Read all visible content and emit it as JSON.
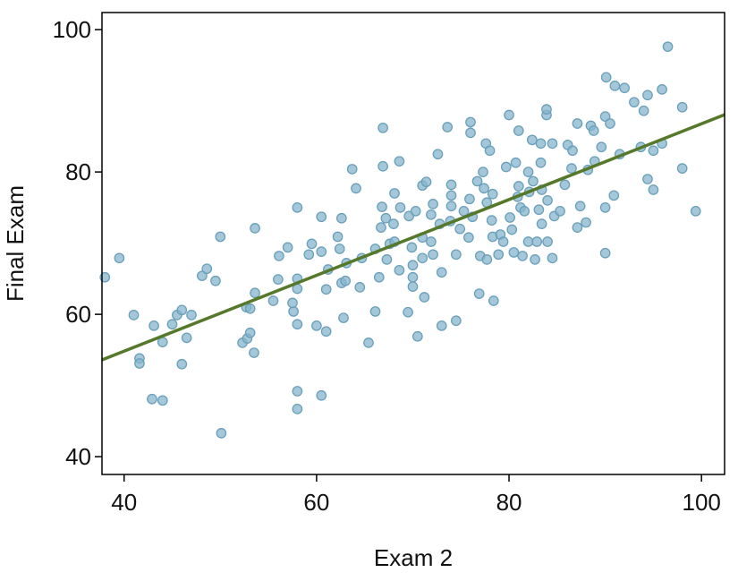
{
  "chart_data": {
    "type": "scatter",
    "x_label": "Exam 2",
    "y_label": "Final Exam",
    "xlim": [
      37.7,
      102.4
    ],
    "ylim": [
      37.5,
      102.4
    ],
    "xticks": [
      40,
      60,
      80,
      100
    ],
    "yticks": [
      40,
      60,
      80,
      100
    ],
    "color": "#86b6cc",
    "edge_color": "#6a9fba",
    "x": [
      38.0,
      39.5,
      41.0,
      41.6,
      41.6,
      42.9,
      43.1,
      44.0,
      44.0,
      45.0,
      45.5,
      46.0,
      47.0,
      46.5,
      46.0,
      48.1,
      48.6,
      49.5,
      50.0,
      50.1,
      52.3,
      52.8,
      53.1,
      52.7,
      53.1,
      53.6,
      53.6,
      53.5,
      55.5,
      56.0,
      56.1,
      57.0,
      57.6,
      57.5,
      58.0,
      58.0,
      58.0,
      58.0,
      58.0,
      58.0,
      59.2,
      59.5,
      60.0,
      60.5,
      60.5,
      60.5,
      61.0,
      61.2,
      61.0,
      62.2,
      62.4,
      62.6,
      62.6,
      62.8,
      63.1,
      63.0,
      63.7,
      64.1,
      64.5,
      64.7,
      65.4,
      66.1,
      66.1,
      66.5,
      66.7,
      66.9,
      66.8,
      66.9,
      67.2,
      67.3,
      67.6,
      68.1,
      68.0,
      68.6,
      68.6,
      68.7,
      68.1,
      69.5,
      69.6,
      69.9,
      70.0,
      70.0,
      70.0,
      70.3,
      70.5,
      71.0,
      71.0,
      71.0,
      71.2,
      71.4,
      71.9,
      71.9,
      72.1,
      72.1,
      72.6,
      72.8,
      73.0,
      73.0,
      73.6,
      73.9,
      74.0,
      74.0,
      74.0,
      74.5,
      74.5,
      74.9,
      75.3,
      75.8,
      75.9,
      76.0,
      76.0,
      76.2,
      76.7,
      76.9,
      77.0,
      77.3,
      77.4,
      77.6,
      77.7,
      77.7,
      78.0,
      78.2,
      78.3,
      78.3,
      78.4,
      78.9,
      79.1,
      79.4,
      79.7,
      80.0,
      80.1,
      80.3,
      80.5,
      80.7,
      80.9,
      81.0,
      81.0,
      81.2,
      81.4,
      81.6,
      82.0,
      82.0,
      82.1,
      82.4,
      82.5,
      82.7,
      82.9,
      83.1,
      83.3,
      83.3,
      83.4,
      83.4,
      83.9,
      83.9,
      84.0,
      84.0,
      84.5,
      84.5,
      84.7,
      85.3,
      85.8,
      86.1,
      86.5,
      86.6,
      87.1,
      87.1,
      87.4,
      88.0,
      88.2,
      88.5,
      88.8,
      88.9,
      89.6,
      90.0,
      90.0,
      90.0,
      90.1,
      90.5,
      90.9,
      91.0,
      91.5,
      92.0,
      93.0,
      93.7,
      94.0,
      94.4,
      94.4,
      95.0,
      95.0,
      95.9,
      95.9,
      96.5,
      98.0,
      98.0,
      99.4
    ],
    "y": [
      65.2,
      67.9,
      59.9,
      53.8,
      53.1,
      48.1,
      58.4,
      56.1,
      47.9,
      58.6,
      59.9,
      60.6,
      59.9,
      56.7,
      53.0,
      65.4,
      66.4,
      64.7,
      70.9,
      43.3,
      56.0,
      56.6,
      57.4,
      61.0,
      60.8,
      63.0,
      72.1,
      54.6,
      61.9,
      64.9,
      68.2,
      69.4,
      60.4,
      61.6,
      75.0,
      65.0,
      63.6,
      58.6,
      49.2,
      46.7,
      68.4,
      69.9,
      58.4,
      73.7,
      68.8,
      48.6,
      57.6,
      66.3,
      63.5,
      70.9,
      69.2,
      73.5,
      64.4,
      59.5,
      67.2,
      64.7,
      80.4,
      77.7,
      63.8,
      67.9,
      56.0,
      69.2,
      60.4,
      65.2,
      72.2,
      86.2,
      75.1,
      80.8,
      73.5,
      67.7,
      69.9,
      77.0,
      72.7,
      66.2,
      81.5,
      75.0,
      70.2,
      60.3,
      73.8,
      69.4,
      66.9,
      65.2,
      63.9,
      74.5,
      56.9,
      78.1,
      70.8,
      67.9,
      62.4,
      78.6,
      70.2,
      74.0,
      68.4,
      75.5,
      82.5,
      72.7,
      65.9,
      58.4,
      86.3,
      73.1,
      76.7,
      75.2,
      78.2,
      59.1,
      68.4,
      72.0,
      74.5,
      70.8,
      76.2,
      85.5,
      87.0,
      73.7,
      78.7,
      62.9,
      68.2,
      80.0,
      77.7,
      84.0,
      67.7,
      75.7,
      83.0,
      73.2,
      76.9,
      70.9,
      61.9,
      68.4,
      71.2,
      70.2,
      80.7,
      88.0,
      73.6,
      71.9,
      68.7,
      81.3,
      76.5,
      78.0,
      85.8,
      75.0,
      68.2,
      74.5,
      70.2,
      80.0,
      77.2,
      84.5,
      78.7,
      67.7,
      70.2,
      74.7,
      84.0,
      81.3,
      77.5,
      72.7,
      88.0,
      88.8,
      70.2,
      76.0,
      67.9,
      84.0,
      73.8,
      74.5,
      78.2,
      83.8,
      80.5,
      83.0,
      86.8,
      72.2,
      75.2,
      72.9,
      80.3,
      86.5,
      85.8,
      81.5,
      83.5,
      75.0,
      87.8,
      68.6,
      93.3,
      86.8,
      76.7,
      92.1,
      82.5,
      91.8,
      89.8,
      83.5,
      88.6,
      90.8,
      79.0,
      77.5,
      83.0,
      91.6,
      84.0,
      97.6,
      89.1,
      80.5,
      74.5
    ],
    "trend_line": {
      "x": [
        37.7,
        102.4
      ],
      "y": [
        53.6,
        88.05
      ],
      "color": "#55782a"
    }
  }
}
